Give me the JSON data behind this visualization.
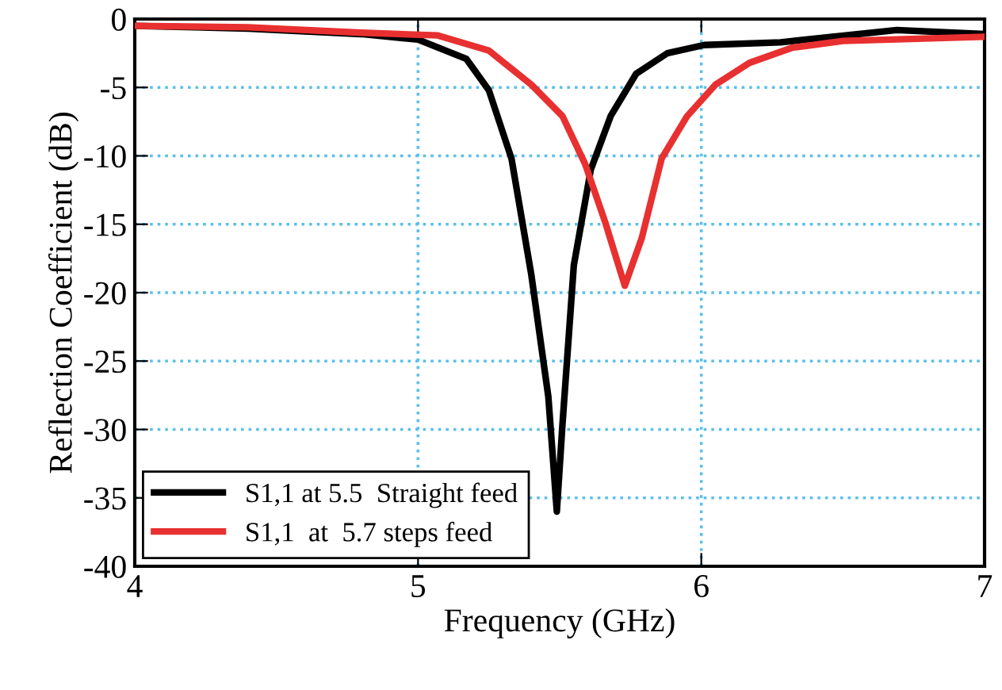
{
  "chart_data": {
    "type": "line",
    "xlabel": "Frequency (GHz)",
    "ylabel": "Reflection Coefficient (dB)",
    "xlim": [
      4,
      7
    ],
    "xticks": [
      4,
      5,
      6,
      7
    ],
    "ylim": [
      -40,
      0
    ],
    "yticks": [
      -40,
      -35,
      -30,
      -25,
      -20,
      -15,
      -10,
      -5,
      0
    ],
    "grid": true,
    "legend": "bottom left",
    "marker": "none",
    "line_style": "solid",
    "series": [
      {
        "name": "S1,1 at 5.5  Straight feed",
        "color": "#000000",
        "x": [
          4.0,
          4.4,
          4.8,
          5.0,
          5.17,
          5.25,
          5.33,
          5.4,
          5.46,
          5.49,
          5.51,
          5.55,
          5.61,
          5.68,
          5.77,
          5.88,
          6.01,
          6.28,
          6.69,
          7.0
        ],
        "values": [
          -0.5,
          -0.7,
          -1.1,
          -1.5,
          -2.9,
          -5.2,
          -10.2,
          -18.7,
          -27.6,
          -36,
          -29.6,
          -18,
          -11,
          -7.1,
          -4.0,
          -2.5,
          -1.9,
          -1.7,
          -0.8,
          -1.1
        ]
      },
      {
        "name": "S1,1  at  5.7 steps feed",
        "color": "#e83030",
        "x": [
          4.0,
          4.4,
          4.8,
          5.07,
          5.25,
          5.4,
          5.51,
          5.59,
          5.66,
          5.73,
          5.79,
          5.86,
          5.95,
          6.05,
          6.17,
          6.32,
          6.5,
          7.0
        ],
        "values": [
          -0.5,
          -0.6,
          -1.0,
          -1.2,
          -2.3,
          -4.8,
          -7.1,
          -10.6,
          -14.8,
          -19.5,
          -16,
          -10.2,
          -7.1,
          -4.8,
          -3.2,
          -2.1,
          -1.6,
          -1.3
        ]
      }
    ]
  }
}
